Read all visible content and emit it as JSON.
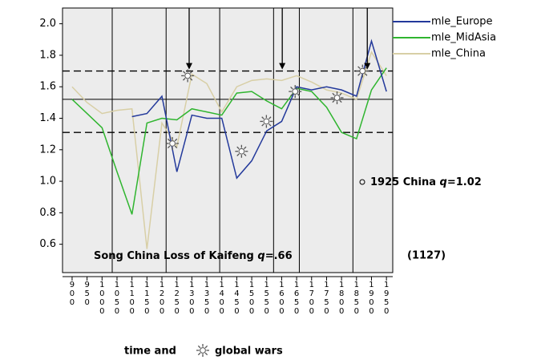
{
  "chart_data": {
    "type": "line",
    "x": [
      900,
      950,
      1000,
      1050,
      1100,
      1150,
      1200,
      1250,
      1300,
      1350,
      1400,
      1450,
      1500,
      1550,
      1600,
      1650,
      1700,
      1750,
      1800,
      1850,
      1900,
      1950
    ],
    "series": [
      {
        "name": "mle_Europe",
        "color": "#23399b",
        "values": [
          null,
          null,
          null,
          null,
          1.41,
          1.43,
          1.54,
          1.06,
          1.42,
          1.4,
          1.4,
          1.02,
          1.13,
          1.32,
          1.38,
          1.6,
          1.58,
          1.6,
          1.58,
          1.54,
          1.89,
          1.57
        ]
      },
      {
        "name": "mle_MidAsia",
        "color": "#2fb52f",
        "values": [
          1.52,
          1.43,
          1.34,
          1.06,
          0.79,
          1.37,
          1.4,
          1.39,
          1.46,
          1.44,
          1.42,
          1.56,
          1.57,
          1.51,
          1.46,
          1.59,
          1.57,
          1.47,
          1.31,
          1.27,
          1.58,
          1.72
        ]
      },
      {
        "name": "mle_China",
        "color": "#d8cfa6",
        "values": [
          1.6,
          1.5,
          1.43,
          1.45,
          1.46,
          0.57,
          1.37,
          1.22,
          1.68,
          1.62,
          1.44,
          1.6,
          1.64,
          1.65,
          1.64,
          1.67,
          1.63,
          1.58,
          1.56,
          1.52,
          1.82,
          1.67
        ]
      }
    ],
    "xlim": [
      868,
      1971
    ],
    "ylim": [
      0.42,
      2.1
    ],
    "xticks": [
      900,
      950,
      1000,
      1050,
      1100,
      1150,
      1200,
      1250,
      1300,
      1350,
      1400,
      1450,
      1500,
      1550,
      1600,
      1650,
      1700,
      1750,
      1800,
      1850,
      1900,
      1950
    ],
    "yticks": [
      {
        "value": 0.6,
        "label": "0.6"
      },
      {
        "value": 0.8,
        "label": "0.8"
      },
      {
        "value": 1.0,
        "label": "1.0"
      },
      {
        "value": 1.2,
        "label": "1.2"
      },
      {
        "value": 1.4,
        "label": "1.4"
      },
      {
        "value": 1.6,
        "label": "1.6"
      },
      {
        "value": 1.8,
        "label": "1.8"
      },
      {
        "value": 2.0,
        "label": "2.0"
      }
    ],
    "reference_lines": {
      "dashed": [
        1.7,
        1.31
      ],
      "solid": [
        1.52
      ]
    },
    "vertical_lines": [
      1034,
      1214,
      1393,
      1573,
      1659,
      1838
    ],
    "arrows": [
      1291,
      1602,
      1886
    ],
    "war_markers": {
      "x": [
        1286,
        1235,
        1466,
        1549,
        1645,
        1785,
        1870
      ],
      "y": [
        1.67,
        1.24,
        1.19,
        1.38,
        1.57,
        1.53,
        1.7
      ]
    },
    "annotations": [
      {
        "text": "1925 China ",
        "variable": "q",
        "value": "=1.02"
      },
      {
        "text": "Song China Loss of Kaifeng ",
        "variable": "q",
        "value": "=.66",
        "year": "(1127)"
      }
    ],
    "x_label": {
      "before": "time and",
      "after": "global wars"
    },
    "legend": "top-right",
    "background": "#ececec"
  }
}
